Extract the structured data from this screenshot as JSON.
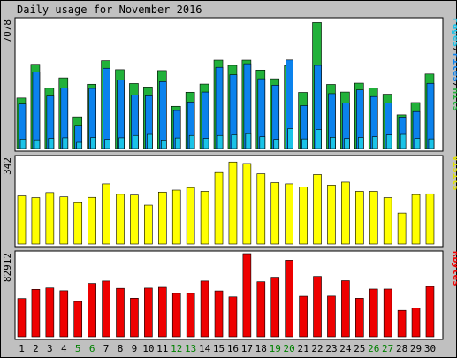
{
  "chart_data": {
    "type": "bar",
    "title": "Daily usage for November 2016",
    "days": [
      "1",
      "2",
      "3",
      "4",
      "5",
      "6",
      "7",
      "8",
      "9",
      "10",
      "11",
      "12",
      "13",
      "14",
      "15",
      "16",
      "17",
      "18",
      "19",
      "20",
      "21",
      "22",
      "23",
      "24",
      "25",
      "26",
      "27",
      "28",
      "29",
      "30"
    ],
    "weekend_days": [
      "5",
      "6",
      "12",
      "13",
      "19",
      "20",
      "26",
      "27"
    ],
    "colors": {
      "frame_bg": "#c0c0c0",
      "plot_bg": "#ffffff",
      "hits": "#21b13a",
      "files": "#0b82ed",
      "pages": "#1bc3e8",
      "visits": "#ffff00",
      "kbytes": "#ee0000",
      "weekday_label": "#000000",
      "weekend_label": "#008000"
    },
    "panels": [
      {
        "id": "hits",
        "max_label": "7078",
        "legend": [
          {
            "text": "Pages",
            "color": "#1bc3e8"
          },
          {
            "text": "/",
            "color": "#000000"
          },
          {
            "text": "Files",
            "color": "#0b82ed"
          },
          {
            "text": "/",
            "color": "#000000"
          },
          {
            "text": "Hits",
            "color": "#21b13a"
          }
        ],
        "ymax": 7078,
        "series": [
          {
            "name": "Hits",
            "color": "#21b13a",
            "values": [
              2790,
              4650,
              3330,
              3900,
              1750,
              3550,
              4850,
              4350,
              3590,
              3400,
              4300,
              2330,
              3110,
              3560,
              4880,
              4590,
              4880,
              4330,
              3850,
              4570,
              3100,
              6960,
              3540,
              3120,
              3610,
              3350,
              3000,
              1860,
              2540,
              4110
            ]
          },
          {
            "name": "Files",
            "color": "#0b82ed",
            "values": [
              2460,
              4220,
              2900,
              3340,
              1280,
              3320,
              4430,
              3780,
              2950,
              2910,
              3690,
              2100,
              2570,
              3120,
              4480,
              4070,
              4680,
              3850,
              3500,
              4890,
              2370,
              4590,
              3030,
              2520,
              3240,
              2870,
              2510,
              1740,
              2040,
              3600
            ]
          },
          {
            "name": "Pages",
            "color": "#1bc3e8",
            "values": [
              520,
              480,
              560,
              590,
              340,
              610,
              510,
              590,
              720,
              780,
              470,
              580,
              720,
              560,
              720,
              760,
              820,
              650,
              510,
              1100,
              530,
              1050,
              620,
              550,
              610,
              650,
              750,
              780,
              560,
              530
            ]
          }
        ]
      },
      {
        "id": "visits",
        "max_label": "342",
        "legend": [
          {
            "text": "Visits",
            "color": "#e0e000"
          }
        ],
        "ymax": 342,
        "series": [
          {
            "name": "Visits",
            "color": "#ffff00",
            "values": [
              192,
              185,
              205,
              188,
              165,
              186,
              240,
              198,
              195,
              155,
              207,
              215,
              225,
              210,
              285,
              327,
              321,
              280,
              245,
              240,
              228,
              277,
              235,
              247,
              210,
              210,
              185,
              123,
              197,
              200
            ]
          }
        ]
      },
      {
        "id": "kbytes",
        "max_label": "82912",
        "legend": [
          {
            "text": "KBytes",
            "color": "#ee0000"
          }
        ],
        "ymax": 82912,
        "series": [
          {
            "name": "KBytes",
            "color": "#ee0000",
            "values": [
              38250,
              47350,
              48750,
              45980,
              35270,
              53300,
              55670,
              48350,
              38550,
              48600,
              49400,
              43360,
              43360,
              55700,
              45800,
              39890,
              82912,
              54980,
              59470,
              76400,
              40540,
              60300,
              40700,
              56000,
              38500,
              47650,
              47650,
              26280,
              28760,
              50200
            ]
          }
        ]
      }
    ]
  }
}
